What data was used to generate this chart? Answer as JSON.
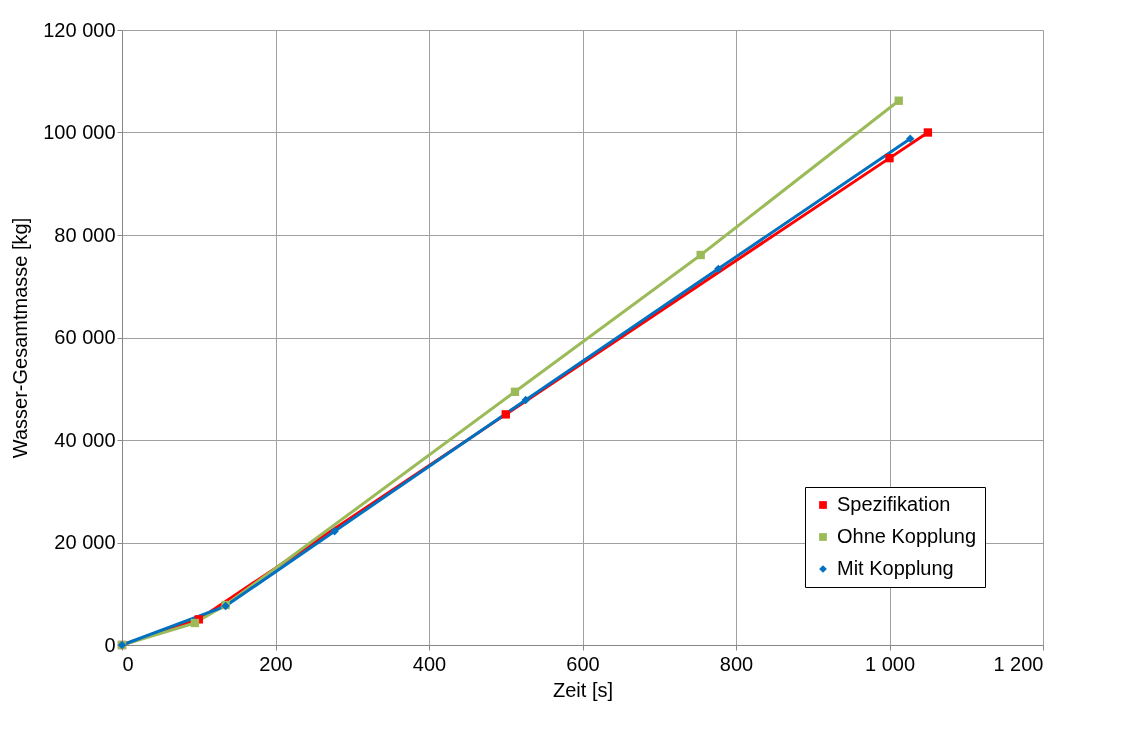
{
  "chart_data": {
    "type": "line",
    "xlabel": "Zeit [s]",
    "ylabel": "Wasser-Gesamtmasse [kg]",
    "xlim": [
      0,
      1200
    ],
    "ylim": [
      0,
      120000
    ],
    "xticks": [
      0,
      200,
      400,
      600,
      800,
      {
        "value": 1000,
        "label": "1 000"
      },
      {
        "value": 1200,
        "label": "1 200"
      }
    ],
    "yticks": [
      0,
      {
        "value": 20000,
        "label": "20 000"
      },
      {
        "value": 40000,
        "label": "40 000"
      },
      {
        "value": 60000,
        "label": "60 000"
      },
      {
        "value": 80000,
        "label": "80 000"
      },
      {
        "value": 100000,
        "label": "100 000"
      },
      {
        "value": 120000,
        "label": "120 000"
      }
    ],
    "grid": true,
    "legend": "bottom right",
    "series": [
      {
        "name": "Spezifikation",
        "color": "#ff0000",
        "marker": "square",
        "x": [
          0,
          100,
          500,
          1000,
          1050
        ],
        "values": [
          0,
          5000,
          45000,
          95000,
          100000
        ]
      },
      {
        "name": "Ohne Kopplung",
        "color": "#9bbb59",
        "marker": "square",
        "x": [
          0,
          95,
          135,
          512,
          754,
          1012
        ],
        "values": [
          0,
          4300,
          7800,
          49400,
          76100,
          106200
        ]
      },
      {
        "name": "Mit Kopplung",
        "color": "#0070c0",
        "marker": "diamond",
        "x": [
          0,
          135,
          277,
          526,
          777,
          1027
        ],
        "values": [
          0,
          7600,
          22200,
          47800,
          73400,
          98800
        ]
      }
    ]
  }
}
